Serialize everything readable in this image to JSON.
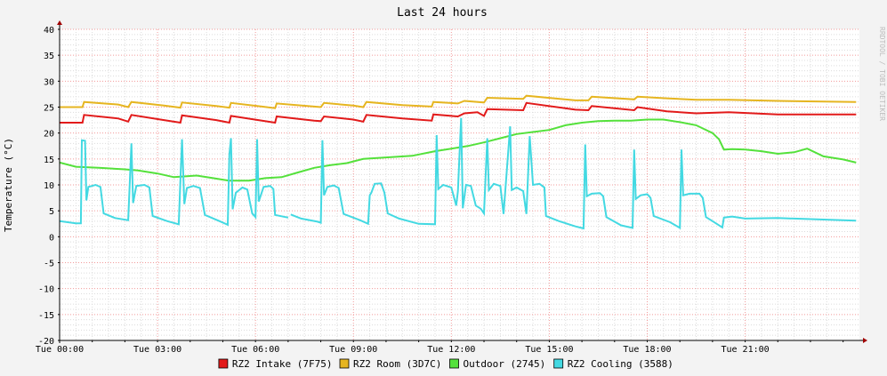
{
  "watermark": "RRDTOOL / TOBI OETIKER",
  "chart_data": {
    "type": "line",
    "title": "Last 24 hours",
    "xlabel": "",
    "ylabel": "Temperature (°C)",
    "ylim": [
      -20,
      40
    ],
    "yticks": [
      -20,
      -15,
      -10,
      -5,
      0,
      5,
      10,
      15,
      20,
      25,
      30,
      35,
      40
    ],
    "xlim_hours": [
      0,
      24.5
    ],
    "xticks": [
      {
        "hour": 0,
        "label": "Tue 00:00"
      },
      {
        "hour": 3,
        "label": "Tue 03:00"
      },
      {
        "hour": 6,
        "label": "Tue 06:00"
      },
      {
        "hour": 9,
        "label": "Tue 09:00"
      },
      {
        "hour": 12,
        "label": "Tue 12:00"
      },
      {
        "hour": 15,
        "label": "Tue 15:00"
      },
      {
        "hour": 18,
        "label": "Tue 18:00"
      },
      {
        "hour": 21,
        "label": "Tue 21:00"
      }
    ],
    "grid": true,
    "legend": "bottom",
    "series": [
      {
        "name": "RZ2 Intake (7F75)",
        "color": "#e21a1a",
        "points": [
          [
            0,
            22.0
          ],
          [
            0.7,
            22.0
          ],
          [
            0.75,
            23.5
          ],
          [
            1.8,
            22.8
          ],
          [
            2.1,
            22.2
          ],
          [
            2.2,
            23.5
          ],
          [
            3.2,
            22.5
          ],
          [
            3.7,
            22.0
          ],
          [
            3.75,
            23.4
          ],
          [
            4.8,
            22.5
          ],
          [
            5.2,
            22.0
          ],
          [
            5.25,
            23.3
          ],
          [
            6.2,
            22.4
          ],
          [
            6.6,
            22.0
          ],
          [
            6.65,
            23.2
          ],
          [
            7.8,
            22.4
          ],
          [
            8.0,
            22.3
          ],
          [
            8.1,
            23.2
          ],
          [
            9.0,
            22.6
          ],
          [
            9.3,
            22.2
          ],
          [
            9.4,
            23.5
          ],
          [
            10.5,
            22.8
          ],
          [
            11.4,
            22.4
          ],
          [
            11.45,
            23.6
          ],
          [
            12.2,
            23.2
          ],
          [
            12.4,
            23.8
          ],
          [
            12.8,
            24.0
          ],
          [
            13.0,
            23.3
          ],
          [
            13.1,
            24.6
          ],
          [
            14.2,
            24.4
          ],
          [
            14.3,
            25.8
          ],
          [
            15.8,
            24.5
          ],
          [
            16.2,
            24.4
          ],
          [
            16.3,
            25.2
          ],
          [
            17.6,
            24.4
          ],
          [
            17.7,
            25.0
          ],
          [
            18.6,
            24.2
          ],
          [
            19.5,
            23.8
          ],
          [
            20.5,
            24.0
          ],
          [
            22,
            23.6
          ],
          [
            24.4,
            23.6
          ]
        ]
      },
      {
        "name": "RZ2 Room (3D7C)",
        "color": "#e6b520",
        "points": [
          [
            0,
            25.0
          ],
          [
            0.7,
            25.0
          ],
          [
            0.75,
            26.0
          ],
          [
            1.8,
            25.5
          ],
          [
            2.1,
            25.0
          ],
          [
            2.2,
            26.0
          ],
          [
            3.2,
            25.3
          ],
          [
            3.7,
            24.9
          ],
          [
            3.75,
            25.9
          ],
          [
            4.8,
            25.2
          ],
          [
            5.2,
            24.9
          ],
          [
            5.25,
            25.8
          ],
          [
            6.2,
            25.1
          ],
          [
            6.6,
            24.8
          ],
          [
            6.65,
            25.7
          ],
          [
            7.8,
            25.1
          ],
          [
            8.0,
            25.0
          ],
          [
            8.1,
            25.8
          ],
          [
            9.0,
            25.3
          ],
          [
            9.3,
            25.0
          ],
          [
            9.4,
            26.0
          ],
          [
            10.5,
            25.4
          ],
          [
            11.4,
            25.1
          ],
          [
            11.45,
            26.0
          ],
          [
            12.2,
            25.7
          ],
          [
            12.4,
            26.2
          ],
          [
            13.0,
            25.9
          ],
          [
            13.1,
            26.8
          ],
          [
            14.2,
            26.6
          ],
          [
            14.3,
            27.2
          ],
          [
            15.8,
            26.3
          ],
          [
            16.2,
            26.3
          ],
          [
            16.3,
            27.0
          ],
          [
            17.6,
            26.5
          ],
          [
            17.7,
            27.0
          ],
          [
            18.6,
            26.7
          ],
          [
            19.5,
            26.4
          ],
          [
            20.5,
            26.4
          ],
          [
            22,
            26.2
          ],
          [
            24.4,
            26.0
          ]
        ]
      },
      {
        "name": "Outdoor (2745)",
        "color": "#54e13b",
        "points": [
          [
            0,
            14.3
          ],
          [
            0.5,
            13.5
          ],
          [
            1.2,
            13.3
          ],
          [
            2.0,
            13.0
          ],
          [
            2.4,
            12.8
          ],
          [
            3.0,
            12.2
          ],
          [
            3.5,
            11.5
          ],
          [
            4.2,
            11.8
          ],
          [
            4.7,
            11.3
          ],
          [
            5.2,
            10.8
          ],
          [
            5.8,
            10.8
          ],
          [
            6.3,
            11.3
          ],
          [
            6.8,
            11.5
          ],
          [
            7.3,
            12.4
          ],
          [
            7.8,
            13.3
          ],
          [
            8.3,
            13.8
          ],
          [
            8.8,
            14.2
          ],
          [
            9.3,
            15.0
          ],
          [
            10.0,
            15.3
          ],
          [
            10.8,
            15.6
          ],
          [
            11.5,
            16.5
          ],
          [
            12.0,
            17.0
          ],
          [
            12.5,
            17.5
          ],
          [
            13.0,
            18.2
          ],
          [
            13.5,
            19.0
          ],
          [
            14.0,
            19.8
          ],
          [
            14.5,
            20.2
          ],
          [
            15.0,
            20.6
          ],
          [
            15.5,
            21.5
          ],
          [
            16.0,
            22.0
          ],
          [
            16.5,
            22.3
          ],
          [
            17.0,
            22.4
          ],
          [
            17.5,
            22.4
          ],
          [
            18.0,
            22.6
          ],
          [
            18.5,
            22.6
          ],
          [
            19.0,
            22.1
          ],
          [
            19.5,
            21.5
          ],
          [
            20.0,
            20.0
          ],
          [
            20.2,
            18.8
          ],
          [
            20.35,
            16.8
          ],
          [
            20.6,
            16.9
          ],
          [
            21.0,
            16.8
          ],
          [
            21.5,
            16.5
          ],
          [
            22.0,
            16.0
          ],
          [
            22.5,
            16.3
          ],
          [
            22.9,
            17.0
          ],
          [
            23.4,
            15.5
          ],
          [
            24.0,
            14.9
          ],
          [
            24.4,
            14.3
          ]
        ]
      },
      {
        "name": "RZ2 Cooling (3588)",
        "color": "#43d9e2",
        "points": [
          [
            0,
            3.0
          ],
          [
            0.5,
            2.6
          ],
          [
            0.65,
            2.6
          ],
          [
            0.68,
            18.6
          ],
          [
            0.78,
            18.5
          ],
          [
            0.82,
            7.0
          ],
          [
            0.88,
            9.6
          ],
          [
            1.1,
            10.0
          ],
          [
            1.25,
            9.6
          ],
          [
            1.35,
            4.5
          ],
          [
            1.7,
            3.6
          ],
          [
            2.1,
            3.2
          ],
          [
            2.15,
            10.5
          ],
          [
            2.2,
            18.0
          ],
          [
            2.25,
            6.5
          ],
          [
            2.35,
            9.8
          ],
          [
            2.6,
            10.0
          ],
          [
            2.75,
            9.5
          ],
          [
            2.85,
            4.0
          ],
          [
            3.3,
            3.0
          ],
          [
            3.65,
            2.4
          ],
          [
            3.7,
            11.0
          ],
          [
            3.75,
            18.8
          ],
          [
            3.82,
            6.3
          ],
          [
            3.9,
            9.4
          ],
          [
            4.1,
            9.8
          ],
          [
            4.3,
            9.4
          ],
          [
            4.45,
            4.2
          ],
          [
            4.9,
            3.0
          ],
          [
            5.15,
            2.3
          ],
          [
            5.2,
            15.8
          ],
          [
            5.25,
            19.0
          ],
          [
            5.3,
            5.3
          ],
          [
            5.4,
            8.5
          ],
          [
            5.6,
            9.5
          ],
          [
            5.75,
            9.1
          ],
          [
            5.9,
            4.5
          ],
          [
            6.0,
            3.8
          ],
          [
            6.05,
            18.8
          ],
          [
            6.1,
            6.8
          ],
          [
            6.25,
            9.6
          ],
          [
            6.45,
            9.8
          ],
          [
            6.55,
            9.2
          ],
          [
            6.6,
            4.2
          ],
          [
            7.0,
            3.7
          ],
          [
            7.05,
            null
          ],
          [
            7.08,
            4.3
          ],
          [
            7.4,
            3.5
          ],
          [
            7.9,
            2.9
          ],
          [
            8.0,
            2.7
          ],
          [
            8.05,
            18.6
          ],
          [
            8.1,
            8.0
          ],
          [
            8.2,
            9.6
          ],
          [
            8.4,
            9.9
          ],
          [
            8.55,
            9.4
          ],
          [
            8.7,
            4.4
          ],
          [
            9.2,
            3.2
          ],
          [
            9.45,
            2.5
          ],
          [
            9.5,
            8.0
          ],
          [
            9.55,
            8.5
          ],
          [
            9.65,
            10.2
          ],
          [
            9.85,
            10.3
          ],
          [
            9.95,
            8.5
          ],
          [
            10.05,
            4.5
          ],
          [
            10.4,
            3.5
          ],
          [
            11.0,
            2.5
          ],
          [
            11.5,
            2.4
          ],
          [
            11.55,
            19.6
          ],
          [
            11.6,
            9.2
          ],
          [
            11.75,
            10.0
          ],
          [
            12.0,
            9.5
          ],
          [
            12.15,
            6.0
          ],
          [
            12.2,
            8.8
          ],
          [
            12.3,
            22.9
          ],
          [
            12.35,
            5.5
          ],
          [
            12.45,
            10.0
          ],
          [
            12.6,
            9.8
          ],
          [
            12.75,
            6.0
          ],
          [
            12.9,
            5.4
          ],
          [
            13.0,
            4.5
          ],
          [
            13.1,
            19.0
          ],
          [
            13.15,
            9.0
          ],
          [
            13.3,
            10.2
          ],
          [
            13.5,
            9.8
          ],
          [
            13.6,
            4.4
          ],
          [
            13.8,
            21.3
          ],
          [
            13.85,
            9.0
          ],
          [
            14.0,
            9.5
          ],
          [
            14.2,
            8.8
          ],
          [
            14.3,
            4.4
          ],
          [
            14.4,
            19.4
          ],
          [
            14.5,
            10.0
          ],
          [
            14.7,
            10.2
          ],
          [
            14.85,
            9.5
          ],
          [
            14.9,
            4.0
          ],
          [
            15.3,
            3.0
          ],
          [
            15.8,
            2.0
          ],
          [
            16.05,
            1.6
          ],
          [
            16.1,
            17.8
          ],
          [
            16.15,
            7.8
          ],
          [
            16.3,
            8.3
          ],
          [
            16.55,
            8.4
          ],
          [
            16.65,
            7.8
          ],
          [
            16.75,
            3.8
          ],
          [
            17.2,
            2.2
          ],
          [
            17.55,
            1.7
          ],
          [
            17.6,
            16.8
          ],
          [
            17.65,
            7.3
          ],
          [
            17.8,
            8.0
          ],
          [
            18.0,
            8.2
          ],
          [
            18.1,
            7.5
          ],
          [
            18.2,
            4.0
          ],
          [
            18.7,
            2.8
          ],
          [
            19.0,
            1.7
          ],
          [
            19.05,
            16.8
          ],
          [
            19.1,
            8.0
          ],
          [
            19.3,
            8.3
          ],
          [
            19.6,
            8.3
          ],
          [
            19.7,
            7.5
          ],
          [
            19.8,
            3.8
          ],
          [
            20.0,
            3.0
          ],
          [
            20.3,
            1.8
          ],
          [
            20.35,
            3.7
          ],
          [
            20.6,
            3.9
          ],
          [
            21.0,
            3.5
          ],
          [
            22.0,
            3.6
          ],
          [
            23.0,
            3.4
          ],
          [
            24.0,
            3.2
          ],
          [
            24.4,
            3.1
          ]
        ]
      }
    ]
  }
}
